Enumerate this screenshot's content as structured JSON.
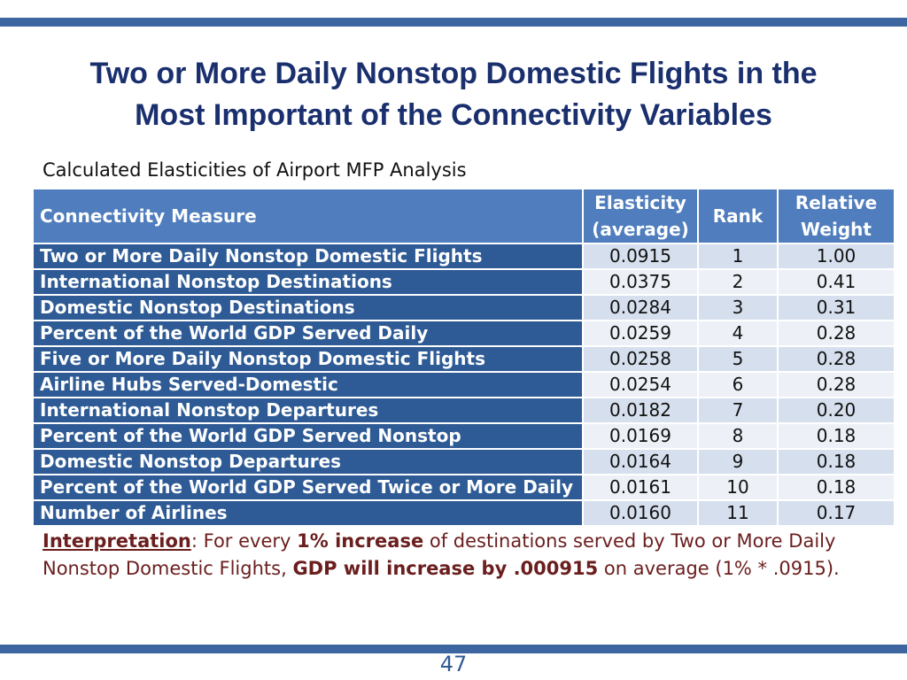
{
  "slide": {
    "title_line1": "Two or More Daily Nonstop Domestic Flights in the",
    "title_line2": "Most Important of the Connectivity Variables",
    "subtitle": "Calculated Elasticities of Airport MFP Analysis",
    "page_number": "47",
    "bar_color": "#3d66a0"
  },
  "table": {
    "headers": {
      "measure": "Connectivity  Measure",
      "elasticity_line1": "Elasticity",
      "elasticity_line2": "(average)",
      "rank": "Rank",
      "weight_line1": "Relative",
      "weight_line2": "Weight"
    },
    "rows": [
      {
        "measure": "Two or More Daily Nonstop Domestic Flights",
        "elasticity": "0.0915",
        "rank": "1",
        "weight": "1.00"
      },
      {
        "measure": "International Nonstop Destinations",
        "elasticity": "0.0375",
        "rank": "2",
        "weight": "0.41"
      },
      {
        "measure": "Domestic Nonstop Destinations",
        "elasticity": "0.0284",
        "rank": "3",
        "weight": "0.31"
      },
      {
        "measure": "Percent of the World GDP Served Daily",
        "elasticity": "0.0259",
        "rank": "4",
        "weight": "0.28"
      },
      {
        "measure": "Five or More Daily Nonstop Domestic Flights",
        "elasticity": "0.0258",
        "rank": "5",
        "weight": "0.28"
      },
      {
        "measure": "Airline Hubs Served-Domestic",
        "elasticity": "0.0254",
        "rank": "6",
        "weight": "0.28"
      },
      {
        "measure": "International Nonstop Departures",
        "elasticity": "0.0182",
        "rank": "7",
        "weight": "0.20"
      },
      {
        "measure": "Percent of the World GDP Served Nonstop",
        "elasticity": "0.0169",
        "rank": "8",
        "weight": "0.18"
      },
      {
        "measure": "Domestic Nonstop Departures",
        "elasticity": "0.0164",
        "rank": "9",
        "weight": "0.18"
      },
      {
        "measure": "Percent of the World GDP Served Twice or More Daily",
        "elasticity": "0.0161",
        "rank": "10",
        "weight": "0.18"
      },
      {
        "measure": "Number of Airlines",
        "elasticity": "0.0160",
        "rank": "11",
        "weight": "0.17"
      }
    ]
  },
  "interpretation": {
    "lead": "Interpretation",
    "colon": ": For every ",
    "bold1": "1% increase",
    "mid": " of destinations served by Two or More Daily Nonstop Domestic Flights, ",
    "bold2": "GDP will increase by .000915",
    "tail": " on average (1% * .0915)."
  }
}
